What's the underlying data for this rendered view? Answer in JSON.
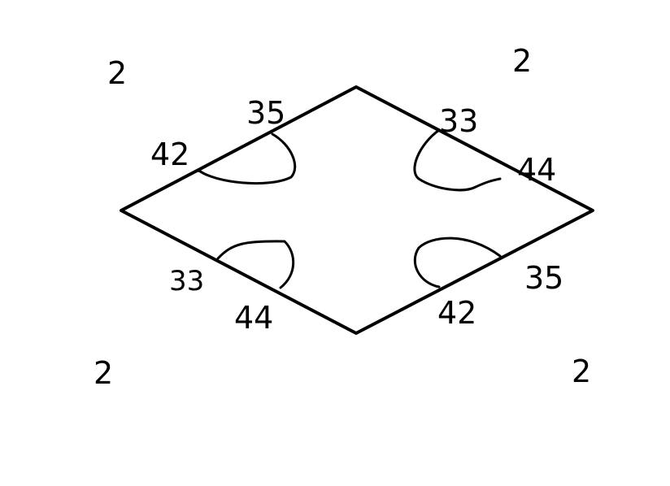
{
  "colors": {
    "ink": "#000000",
    "background": "#ffffff"
  },
  "corner_labels": {
    "top_left": "2",
    "top_right": "2",
    "bottom_left": "2",
    "bottom_right": "2"
  },
  "edge_labels": {
    "top_left_upper": "35",
    "top_left_lower": "42",
    "top_right_upper": "33",
    "top_right_lower": "44",
    "bottom_left_upper": "33",
    "bottom_left_lower": "44",
    "bottom_right_upper": "35",
    "bottom_right_lower": "42"
  }
}
